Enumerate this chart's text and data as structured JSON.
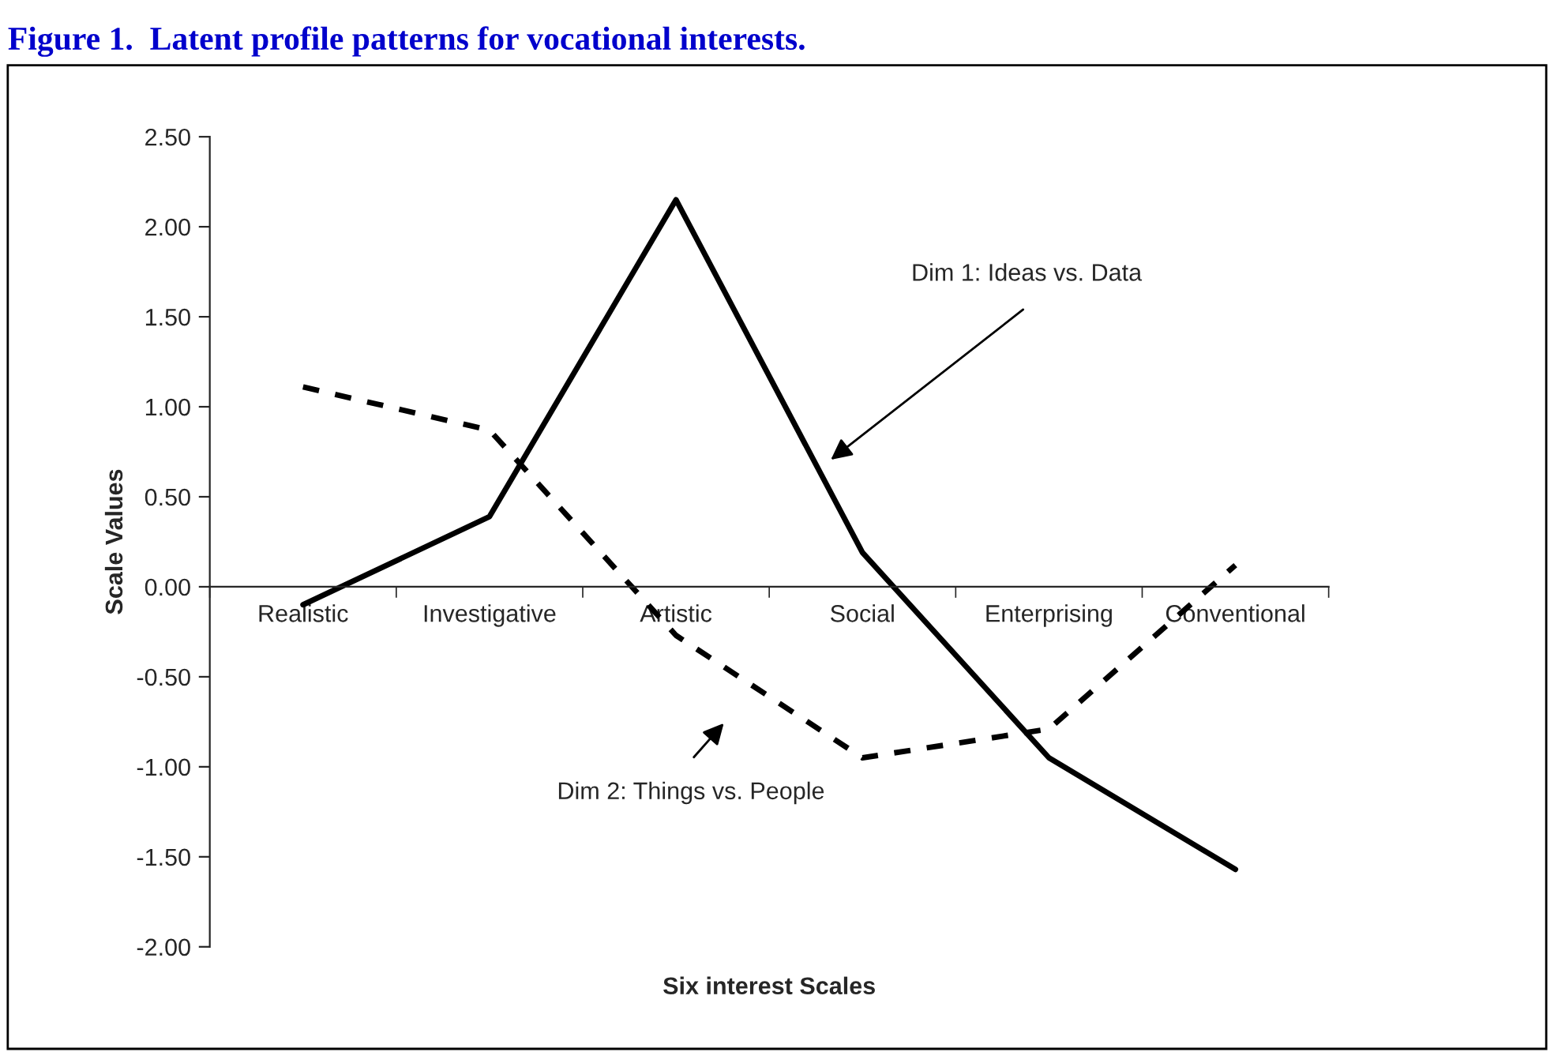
{
  "chart_data": {
    "type": "line",
    "title": "Figure 1.  Latent profile patterns for vocational interests.",
    "xlabel": "Six interest Scales",
    "ylabel": "Scale Values",
    "categories": [
      "Realistic",
      "Investigative",
      "Artistic",
      "Social",
      "Enterprising",
      "Conventional"
    ],
    "series": [
      {
        "color": "#000000",
        "line_style": "solid",
        "values": [
          -0.1,
          0.39,
          2.15,
          0.19,
          -0.95,
          -1.57
        ]
      },
      {
        "color": "#000000",
        "line_style": "dashed",
        "values": [
          1.11,
          0.87,
          -0.27,
          -0.95,
          -0.79,
          0.12
        ]
      }
    ],
    "ylim": [
      -2.0,
      2.5
    ],
    "yticks": [
      {
        "value": -2.0,
        "label": "-2.00"
      },
      {
        "value": -1.5,
        "label": "-1.50"
      },
      {
        "value": -1.0,
        "label": "-1.00"
      },
      {
        "value": -0.5,
        "label": "-0.50"
      },
      {
        "value": 0.0,
        "label": "0.00"
      },
      {
        "value": 0.5,
        "label": "0.50"
      },
      {
        "value": 1.0,
        "label": "1.00"
      },
      {
        "value": 1.5,
        "label": "1.50"
      },
      {
        "value": 2.0,
        "label": "2.00"
      },
      {
        "value": 2.5,
        "label": "2.50"
      }
    ],
    "grid": false,
    "legend": false,
    "marker": "none",
    "annotations": [
      "Dim 1: Ideas vs. Data",
      "Dim 2: Things vs. People"
    ]
  }
}
